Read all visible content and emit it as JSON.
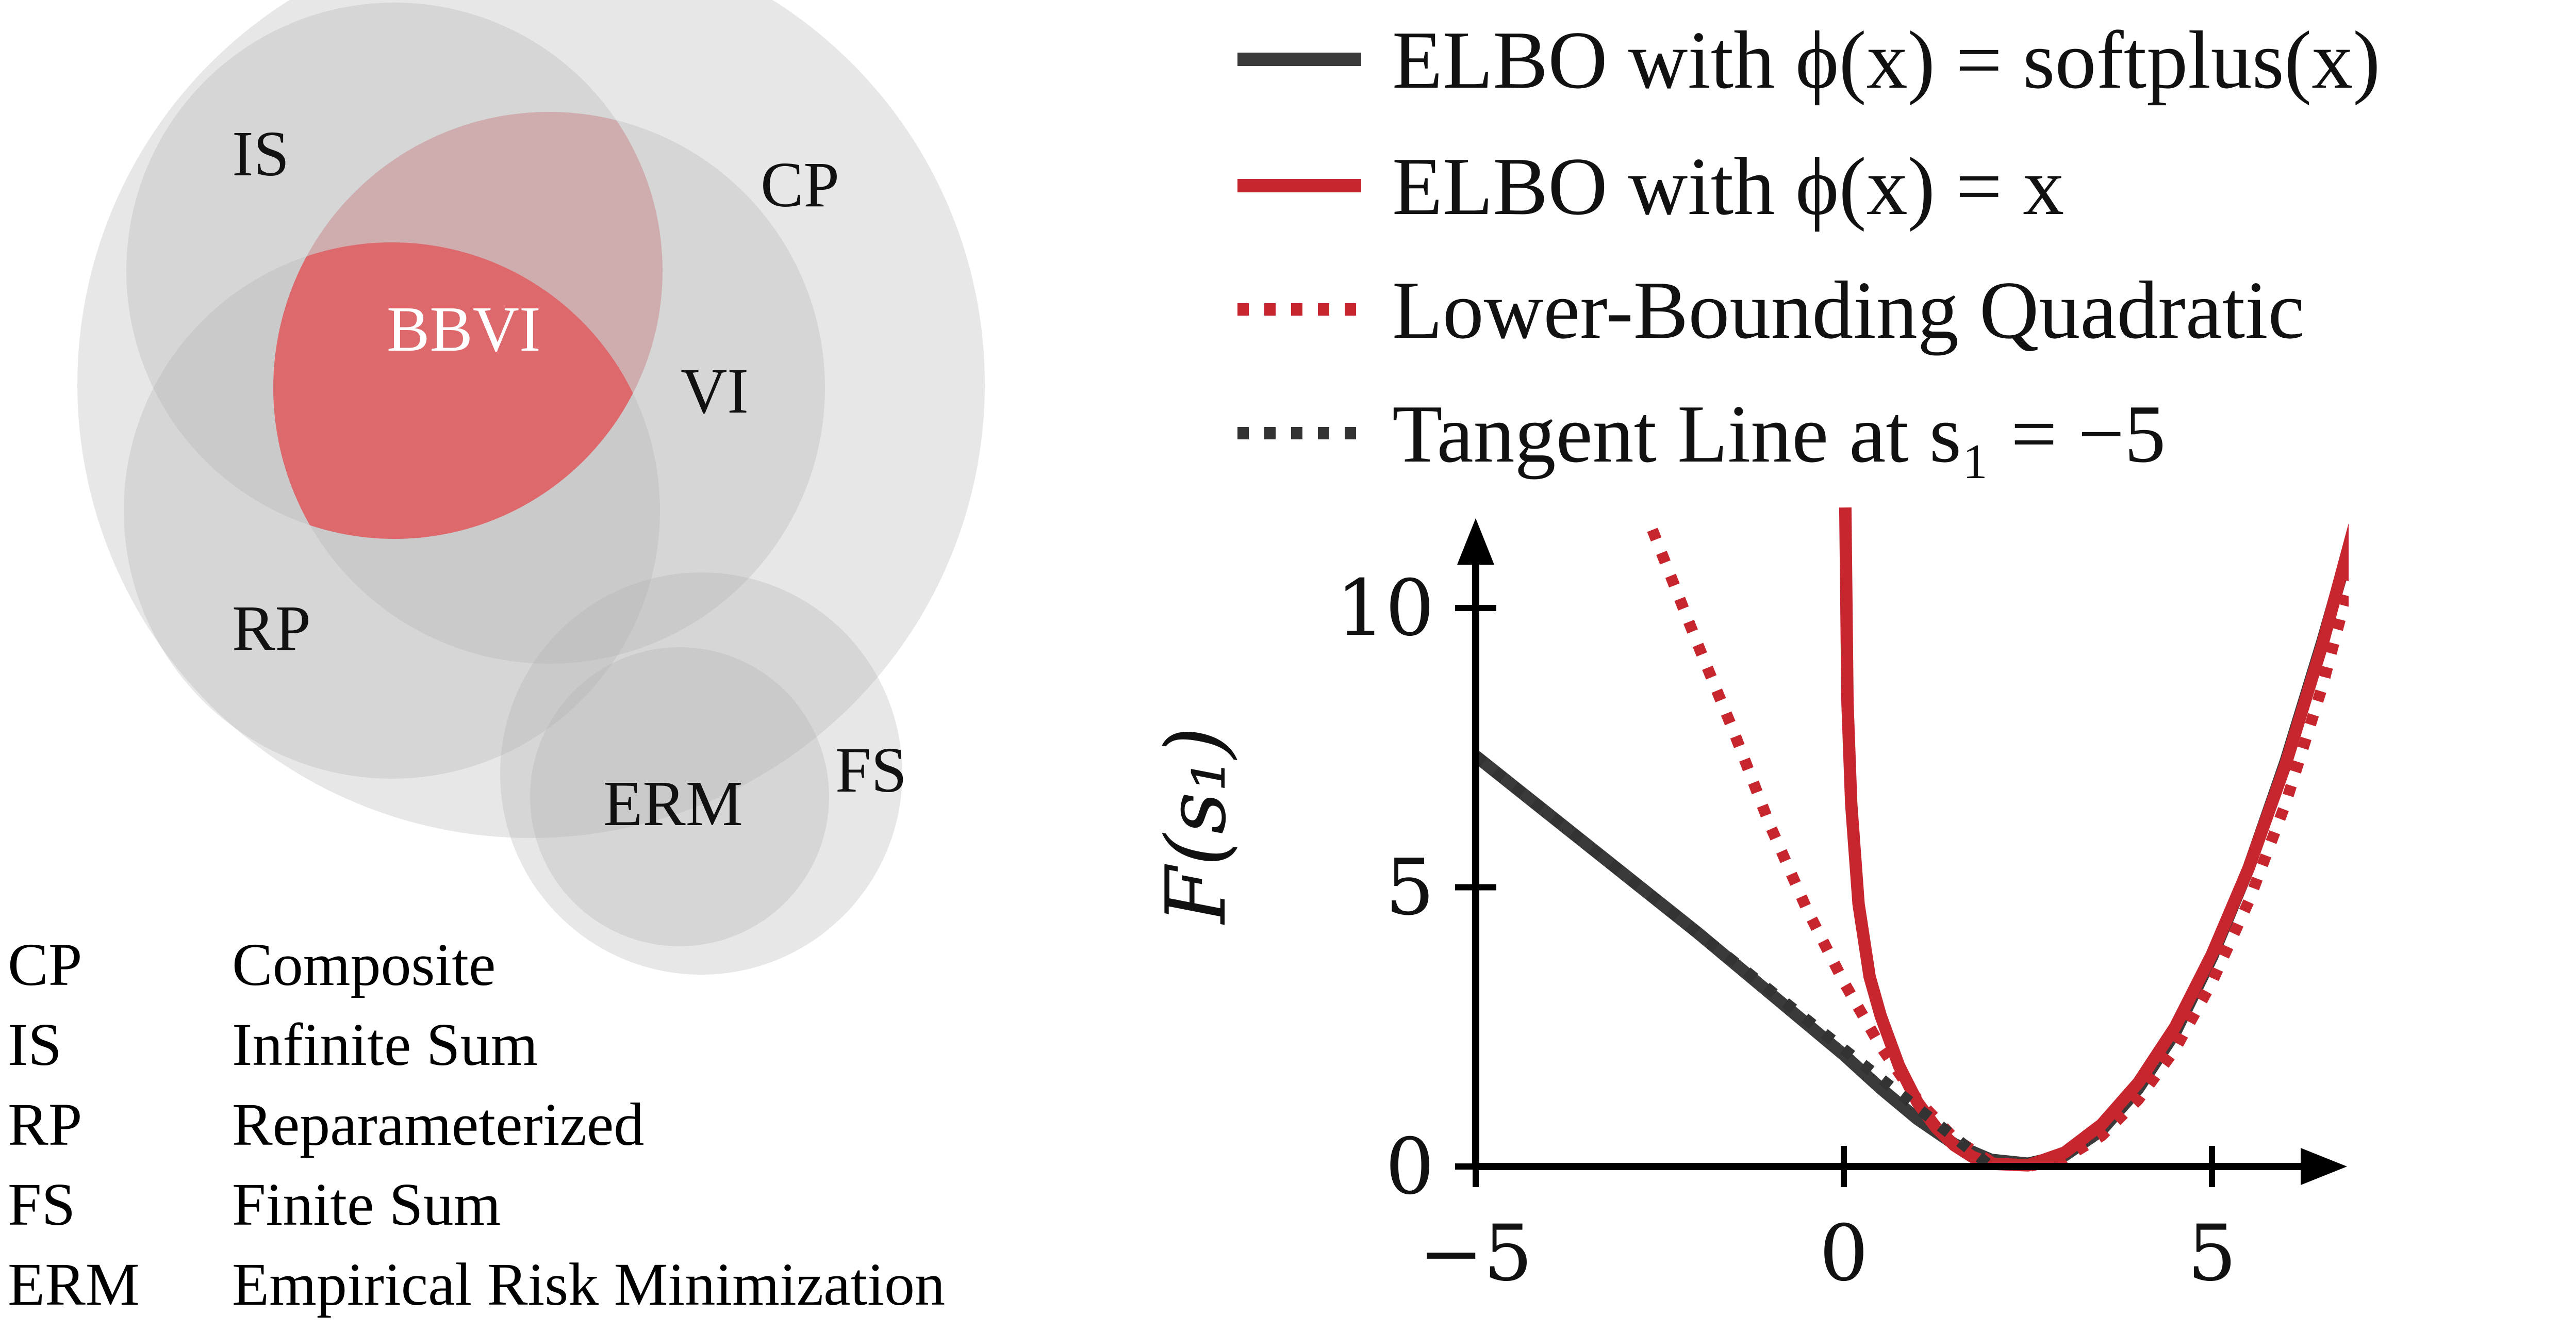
{
  "venn": {
    "labels": {
      "IS": "IS",
      "CP": "CP",
      "BBVI": "BBVI",
      "VI": "VI",
      "RP": "RP",
      "FS": "FS",
      "ERM": "ERM"
    },
    "colors": {
      "circle": "#b0b0b0",
      "bbvi": "#e06468"
    }
  },
  "glossary": [
    {
      "abbr": "CP",
      "full": "Composite"
    },
    {
      "abbr": "IS",
      "full": "Infinite Sum"
    },
    {
      "abbr": "RP",
      "full": "Reparameterized"
    },
    {
      "abbr": "FS",
      "full": "Finite Sum"
    },
    {
      "abbr": "ERM",
      "full": "Empirical Risk Minimization"
    }
  ],
  "chart_data": {
    "type": "line",
    "xlabel": "",
    "ylabel": "F(s₁)",
    "xlim": [
      -5,
      7
    ],
    "ylim": [
      0,
      11.5
    ],
    "xticks": [
      -5,
      0,
      5
    ],
    "xtick_labels": [
      "−5",
      "0",
      "5"
    ],
    "yticks": [
      0,
      5,
      10
    ],
    "ytick_labels": [
      "0",
      "5",
      "10"
    ],
    "grid": false,
    "legend_position": "top",
    "series": [
      {
        "name": "ELBO with ϕ(x) = softplus(x)",
        "color": "#3a3a3a",
        "style": "solid",
        "x": [
          -5,
          -4,
          -3,
          -2,
          -1,
          0,
          0.5,
          1,
          1.5,
          2,
          2.5,
          3,
          3.5,
          4,
          4.5,
          5,
          5.5,
          6,
          6.5,
          7
        ],
        "y": [
          7.35,
          6.3,
          5.25,
          4.2,
          3.1,
          2.0,
          1.4,
          0.85,
          0.4,
          0.12,
          0.05,
          0.2,
          0.65,
          1.4,
          2.4,
          3.75,
          5.35,
          7.25,
          9.4,
          11.7
        ]
      },
      {
        "name": "ELBO with ϕ(x) = x",
        "color": "#c8262e",
        "style": "solid",
        "x": [
          0.02,
          0.05,
          0.1,
          0.2,
          0.35,
          0.5,
          0.75,
          1,
          1.25,
          1.5,
          1.75,
          2,
          2.5,
          3,
          3.5,
          4,
          4.5,
          5,
          5.5,
          6,
          6.5,
          7
        ],
        "y": [
          11.8,
          8.3,
          6.5,
          4.7,
          3.4,
          2.7,
          1.8,
          1.15,
          0.7,
          0.38,
          0.17,
          0.05,
          0.02,
          0.25,
          0.75,
          1.5,
          2.5,
          3.8,
          5.35,
          7.2,
          9.35,
          11.8
        ]
      },
      {
        "name": "Lower-Bounding Quadratic",
        "color": "#c8262e",
        "style": "dotted",
        "x": [
          -2.6,
          -2,
          -1.5,
          -1,
          -0.5,
          0,
          0.5,
          1,
          1.5,
          2,
          2.5,
          3,
          3.5,
          4,
          4.5,
          5,
          5.5,
          6,
          6.5,
          7
        ],
        "y": [
          11.4,
          9.4,
          7.8,
          6.1,
          4.6,
          3.3,
          2.15,
          1.2,
          0.5,
          0.08,
          0.0,
          0.15,
          0.55,
          1.2,
          2.1,
          3.3,
          4.75,
          6.5,
          8.6,
          11.1
        ]
      },
      {
        "name": "Tangent Line at s₁ = −5",
        "color": "#333333",
        "style": "dotted",
        "x": [
          -5,
          -4,
          -3,
          -2,
          -1,
          0,
          1,
          2
        ],
        "y": [
          7.35,
          6.3,
          5.25,
          4.2,
          3.15,
          2.1,
          1.05,
          0.0
        ]
      }
    ]
  }
}
